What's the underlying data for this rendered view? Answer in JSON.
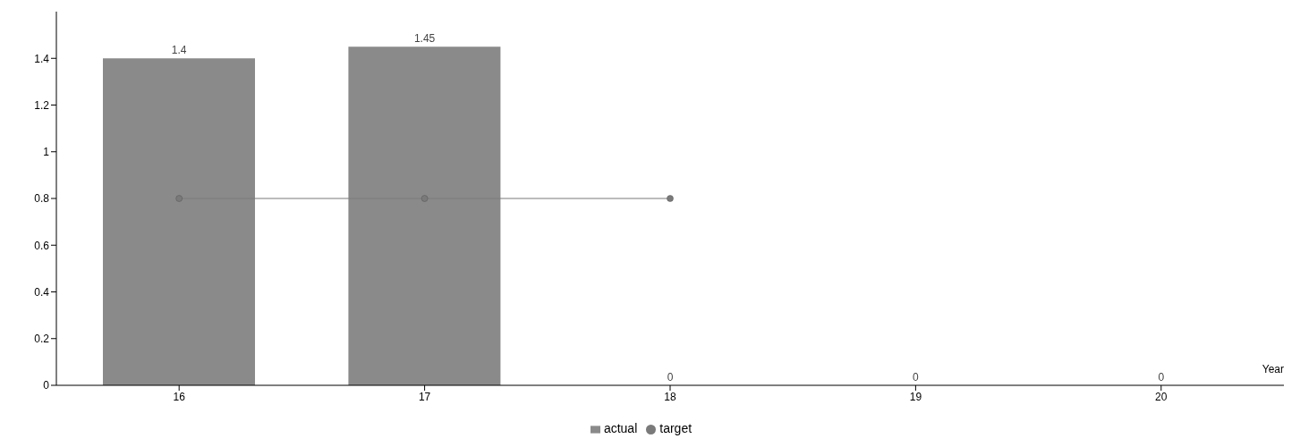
{
  "chart_data": {
    "type": "bar",
    "xlabel": "Year",
    "categories": [
      "16",
      "17",
      "18",
      "19",
      "20"
    ],
    "series": [
      {
        "name": "actual",
        "color": "#8a8a8a",
        "values": [
          1.4,
          1.45,
          0,
          0,
          0
        ],
        "value_labels": [
          "1.4",
          "1.45",
          "0",
          "0",
          "0"
        ]
      },
      {
        "name": "target",
        "type": "line",
        "color": "#7a7a7a",
        "values": [
          0.8,
          0.8,
          0.8,
          null,
          null
        ]
      }
    ],
    "ylim": [
      0,
      1.6
    ],
    "yticks": [
      0,
      0.2,
      0.4,
      0.6,
      0.8,
      1,
      1.2,
      1.4
    ],
    "grid": false,
    "legend": "bottom",
    "marker": "circle"
  }
}
